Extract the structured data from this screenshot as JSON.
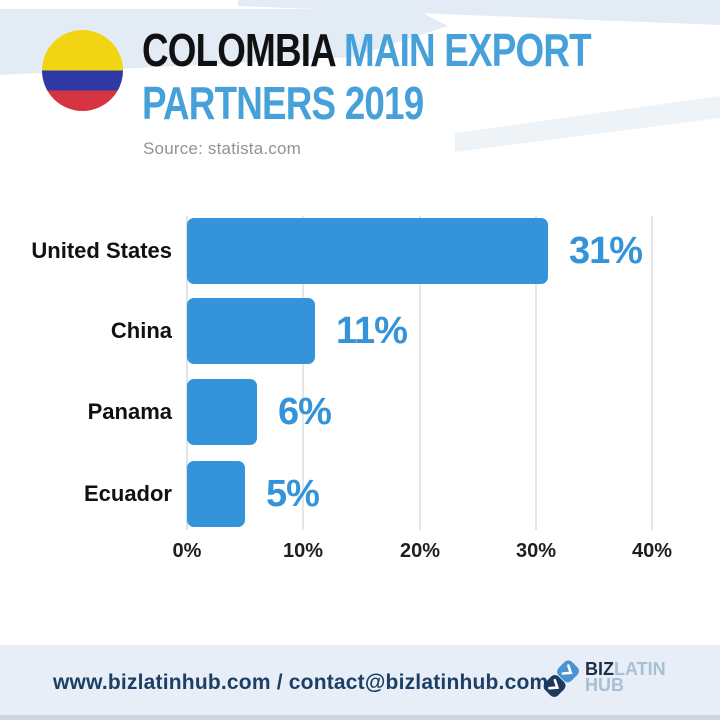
{
  "header": {
    "title_black": "COLOMBIA",
    "title_blue_rest": " MAIN EXPORT",
    "title_line2": "PARTNERS 2019",
    "source": "Source: statista.com",
    "flag_icon": "colombia-flag-circle"
  },
  "chart_data": {
    "type": "bar",
    "orientation": "horizontal",
    "title": "COLOMBIA MAIN EXPORT PARTNERS 2019",
    "source": "statista.com",
    "categories": [
      "United States",
      "China",
      "Panama",
      "Ecuador"
    ],
    "values": [
      31,
      11,
      6,
      5
    ],
    "value_labels": [
      "31%",
      "11%",
      "6%",
      "5%"
    ],
    "x_ticks": [
      "0%",
      "10%",
      "20%",
      "30%",
      "40%"
    ],
    "x_tick_values": [
      0,
      10,
      20,
      30,
      40
    ],
    "xlim": [
      0,
      40
    ],
    "grid": "vertical-light",
    "legend": "none",
    "bar_color": "#3594d9",
    "value_label_color": "#3594d9"
  },
  "footer": {
    "contact_line": "www.bizlatinhub.com / contact@bizlatinhub.com",
    "logo": {
      "biz": "BIZ",
      "latin": "LATIN",
      "hub": "HUB"
    }
  },
  "colors": {
    "bar_blue": "#3594d9",
    "title_blue": "#46a0d9",
    "title_black": "#111111",
    "source_gray": "#8e9398",
    "top_band": "#e3ecf4",
    "footer_band": "#e7eef7",
    "footer_navy": "#1d3f66",
    "logo_dark": "#1b3a5e",
    "logo_light_blue": "#4a94d4",
    "logo_text_light": "#a9c0d4",
    "flag_yellow": "#f2d512",
    "flag_blue": "#2f38a5",
    "flag_red": "#d63440",
    "gridline": "#e4e7ea"
  }
}
